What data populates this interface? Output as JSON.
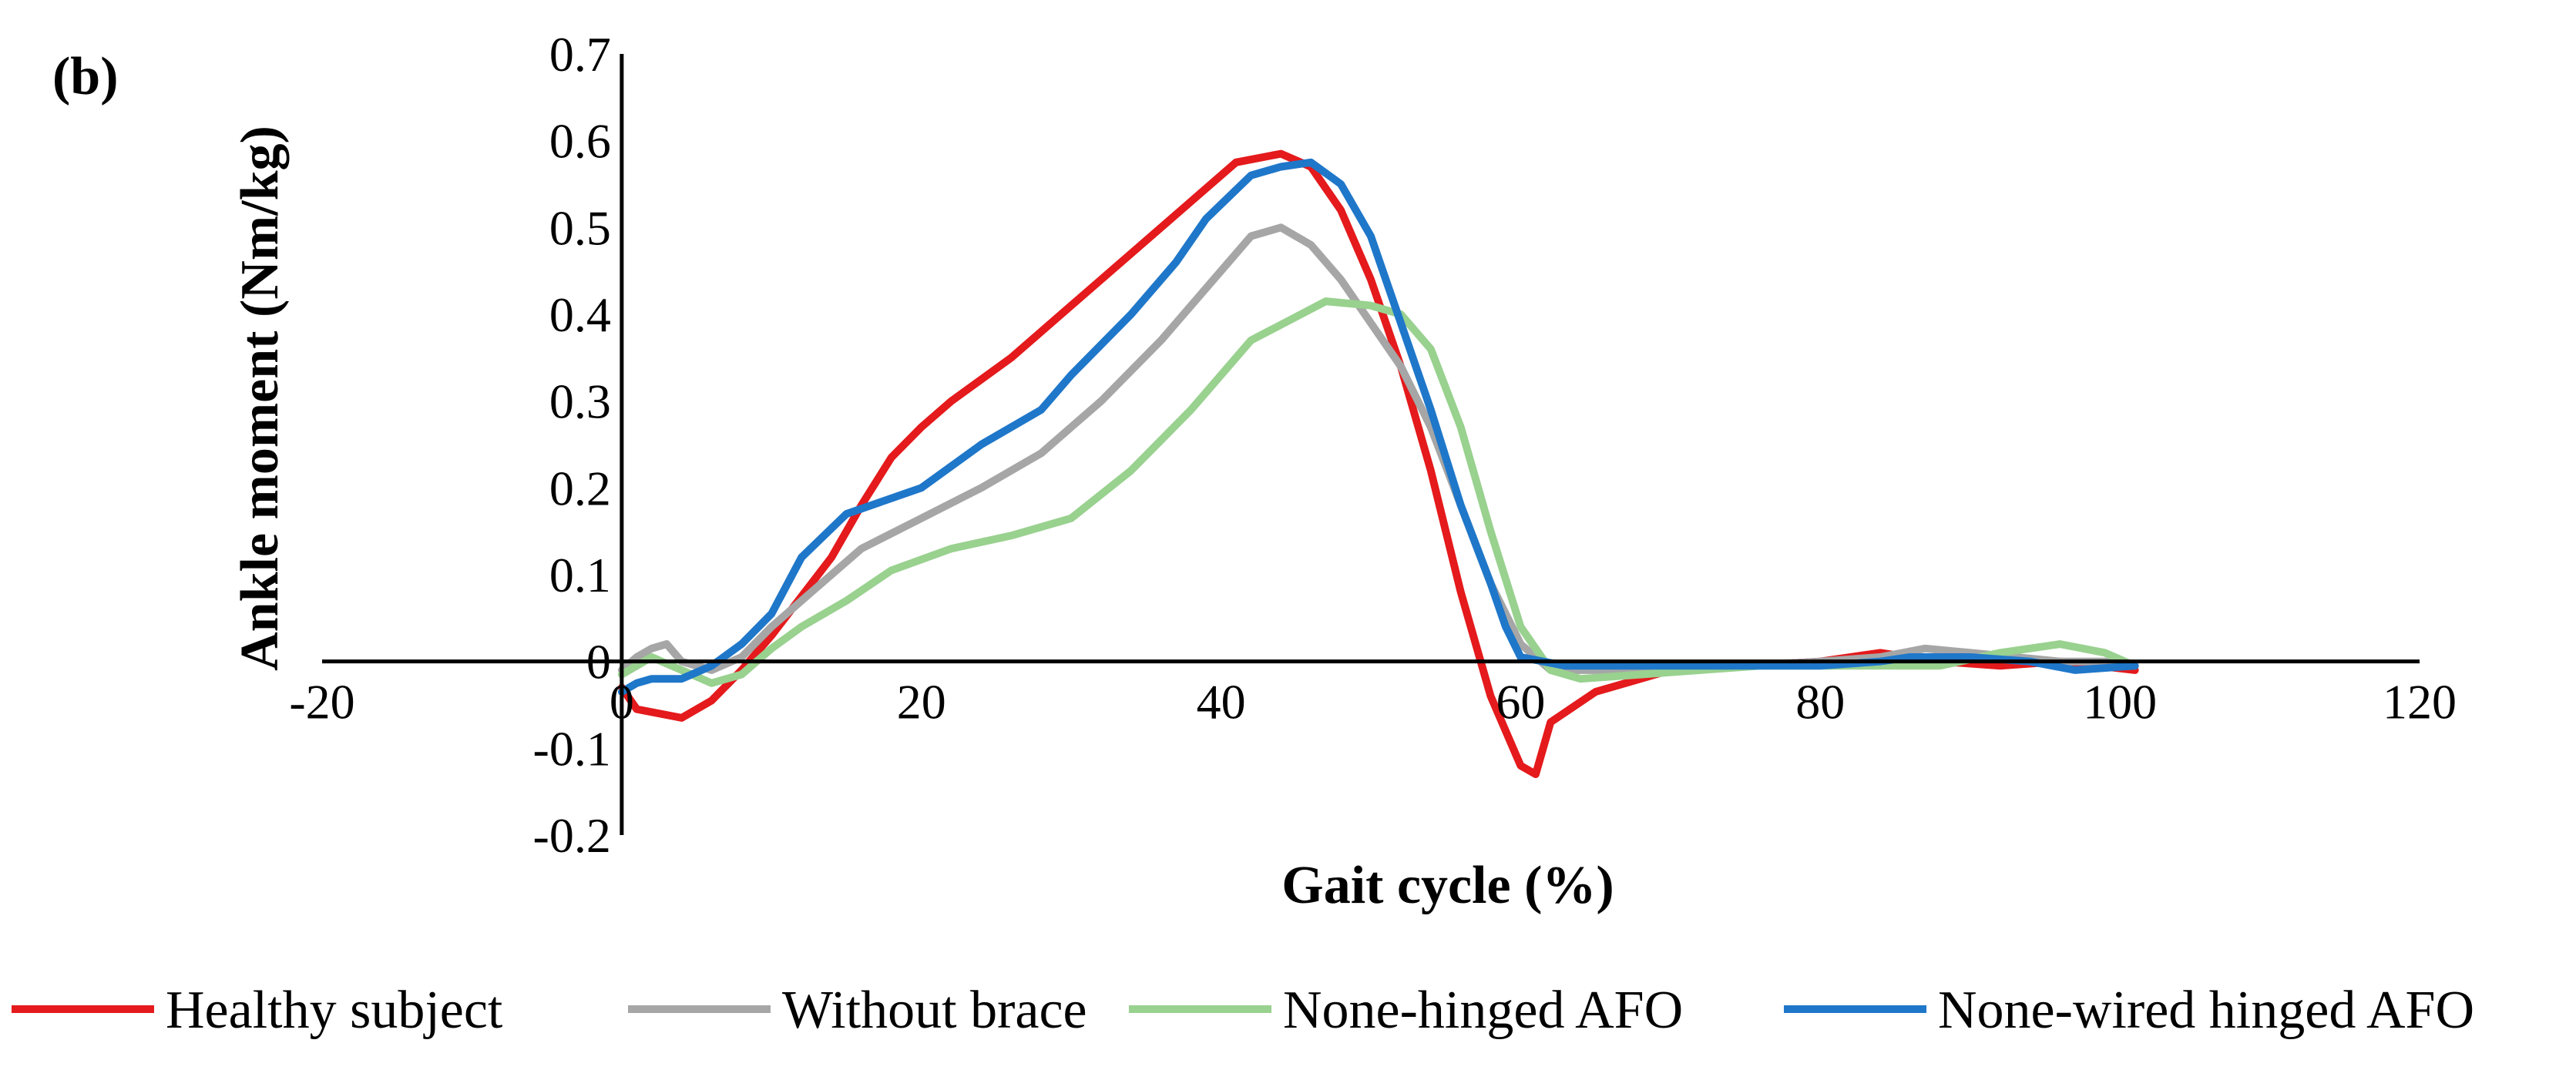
{
  "panel_label": "(b)",
  "chart_data": {
    "type": "line",
    "title": "",
    "xlabel": "Gait cycle (%)",
    "ylabel": "Ankle moment (Nm/kg)",
    "xlim": [
      -20,
      120
    ],
    "ylim": [
      -0.2,
      0.7
    ],
    "xticks": [
      -20,
      0,
      20,
      40,
      60,
      80,
      100,
      120
    ],
    "yticks": [
      -0.2,
      -0.1,
      0,
      0.1,
      0.2,
      0.3,
      0.4,
      0.5,
      0.6,
      0.7
    ],
    "xtick_labels": [
      "-20",
      "0",
      "20",
      "40",
      "60",
      "80",
      "100",
      "120"
    ],
    "ytick_labels": [
      "-0.2",
      "-0.1",
      "0",
      "0.1",
      "0.2",
      "0.3",
      "0.4",
      "0.5",
      "0.6",
      "0.7"
    ],
    "grid": false,
    "legend": "bottom",
    "series": [
      {
        "name": "Healthy subject",
        "color": "#E41A1C",
        "x": [
          0,
          1,
          4,
          6,
          8,
          10,
          12,
          14,
          16,
          18,
          20,
          22,
          26,
          30,
          34,
          38,
          41,
          44,
          46,
          48,
          50,
          52,
          54,
          56,
          58,
          60,
          61,
          62,
          65,
          70,
          75,
          80,
          84,
          88,
          92,
          96,
          101
        ],
        "y": [
          -0.03,
          -0.055,
          -0.065,
          -0.045,
          -0.01,
          0.03,
          0.075,
          0.12,
          0.18,
          0.235,
          0.27,
          0.3,
          0.35,
          0.41,
          0.47,
          0.53,
          0.575,
          0.585,
          0.57,
          0.52,
          0.44,
          0.34,
          0.22,
          0.08,
          -0.04,
          -0.12,
          -0.13,
          -0.07,
          -0.035,
          -0.01,
          -0.005,
          0.0,
          0.01,
          0.0,
          -0.005,
          0.0,
          -0.01
        ]
      },
      {
        "name": "Without brace",
        "color": "#A6A6A6",
        "x": [
          0,
          1,
          2,
          3,
          4,
          6,
          8,
          10,
          13,
          16,
          20,
          24,
          28,
          32,
          36,
          40,
          42,
          44,
          46,
          48,
          50,
          52,
          54,
          56,
          58,
          60,
          62,
          66,
          70,
          75,
          80,
          84,
          87,
          90,
          93,
          96,
          99,
          101
        ],
        "y": [
          -0.01,
          0.005,
          0.015,
          0.02,
          0.0,
          -0.01,
          0.005,
          0.04,
          0.085,
          0.13,
          0.165,
          0.2,
          0.24,
          0.3,
          0.37,
          0.45,
          0.49,
          0.5,
          0.48,
          0.44,
          0.39,
          0.34,
          0.27,
          0.18,
          0.09,
          0.02,
          -0.01,
          -0.01,
          -0.005,
          -0.005,
          0.0,
          0.005,
          0.015,
          0.01,
          0.005,
          0.0,
          0.0,
          -0.005
        ]
      },
      {
        "name": "None-hinged AFO",
        "color": "#99D18F",
        "x": [
          0,
          2,
          4,
          6,
          8,
          10,
          12,
          15,
          18,
          22,
          26,
          30,
          34,
          38,
          42,
          47,
          50,
          52,
          54,
          56,
          58,
          60,
          62,
          64,
          68,
          72,
          76,
          80,
          84,
          88,
          92,
          96,
          99,
          101
        ],
        "y": [
          -0.015,
          0.005,
          -0.01,
          -0.025,
          -0.015,
          0.015,
          0.04,
          0.07,
          0.105,
          0.13,
          0.145,
          0.165,
          0.22,
          0.29,
          0.37,
          0.415,
          0.41,
          0.4,
          0.36,
          0.27,
          0.15,
          0.04,
          -0.01,
          -0.02,
          -0.015,
          -0.01,
          -0.005,
          -0.005,
          -0.005,
          -0.005,
          0.01,
          0.02,
          0.01,
          -0.005
        ]
      },
      {
        "name": "None-wired hinged AFO",
        "color": "#1F77C9",
        "x": [
          0,
          1,
          2,
          4,
          6,
          8,
          10,
          12,
          15,
          20,
          24,
          28,
          30,
          34,
          37,
          39,
          42,
          44,
          46,
          48,
          50,
          52,
          54,
          56,
          58,
          59,
          60,
          63,
          66,
          70,
          75,
          80,
          84,
          86,
          90,
          94,
          97,
          101
        ],
        "y": [
          -0.035,
          -0.025,
          -0.02,
          -0.02,
          -0.005,
          0.02,
          0.055,
          0.12,
          0.17,
          0.2,
          0.25,
          0.29,
          0.33,
          0.4,
          0.46,
          0.51,
          0.56,
          0.57,
          0.575,
          0.55,
          0.49,
          0.39,
          0.29,
          0.18,
          0.09,
          0.04,
          0.005,
          -0.005,
          -0.005,
          -0.005,
          -0.005,
          -0.005,
          0.0,
          0.005,
          0.005,
          0.0,
          -0.01,
          -0.005
        ]
      }
    ]
  }
}
